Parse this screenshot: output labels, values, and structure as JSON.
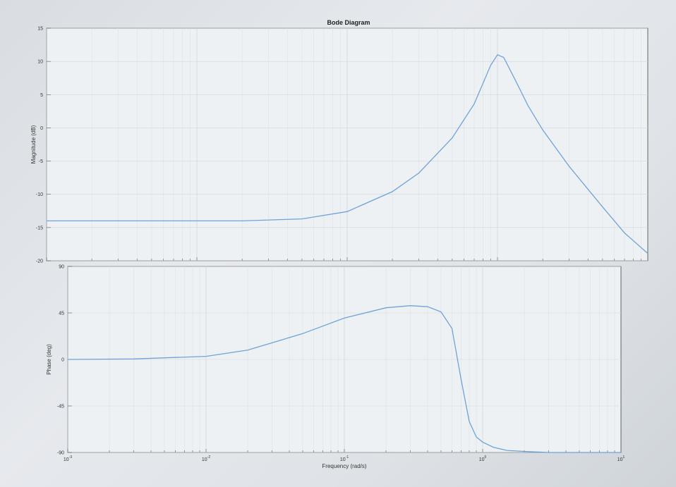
{
  "chart_data": {
    "type": "line",
    "title": "Bode Diagram",
    "xlabel": "Frequency  (rad/s)",
    "xscale": "log",
    "xlim": [
      0.001,
      10
    ],
    "grid": true,
    "x_ticks": [
      {
        "value": 0.001,
        "base": "10",
        "exp": "-3"
      },
      {
        "value": 0.01,
        "base": "10",
        "exp": "-2"
      },
      {
        "value": 0.1,
        "base": "10",
        "exp": "-1"
      },
      {
        "value": 1,
        "base": "10",
        "exp": "0"
      },
      {
        "value": 10,
        "base": "10",
        "exp": "1"
      }
    ],
    "plots": [
      {
        "ylabel": "Magnitude (dB)",
        "ylim": [
          -20,
          15
        ],
        "yticks": [
          15,
          10,
          5,
          0,
          -5,
          -10,
          -15,
          -20
        ],
        "series": [
          {
            "x": [
              0.001,
              0.003,
              0.01,
              0.02,
              0.05,
              0.1,
              0.2,
              0.3,
              0.5,
              0.7,
              0.9,
              1.0,
              1.1,
              1.3,
              1.6,
              2,
              3,
              5,
              7,
              10
            ],
            "values": [
              -14,
              -14,
              -14,
              -14,
              -13.7,
              -12.6,
              -9.6,
              -6.8,
              -1.5,
              3.6,
              9.4,
              11,
              10.6,
              7.4,
              3.3,
              -0.3,
              -5.8,
              -11.9,
              -15.8,
              -18.9
            ]
          }
        ]
      },
      {
        "ylabel": "Phase (deg)",
        "ylim": [
          -90,
          90
        ],
        "yticks": [
          90,
          45,
          0,
          -45,
          -90
        ],
        "series": [
          {
            "x": [
              0.001,
              0.003,
              0.01,
              0.02,
              0.05,
              0.1,
              0.2,
              0.3,
              0.4,
              0.5,
              0.6,
              0.7,
              0.8,
              0.9,
              1.0,
              1.2,
              1.5,
              2,
              3,
              5,
              10
            ],
            "values": [
              0,
              0.5,
              3,
              9,
              25,
              40,
              50,
              52,
              51,
              46,
              30,
              -20,
              -60,
              -75,
              -80,
              -85,
              -88,
              -89,
              -90,
              -90,
              -90
            ]
          }
        ]
      }
    ]
  }
}
